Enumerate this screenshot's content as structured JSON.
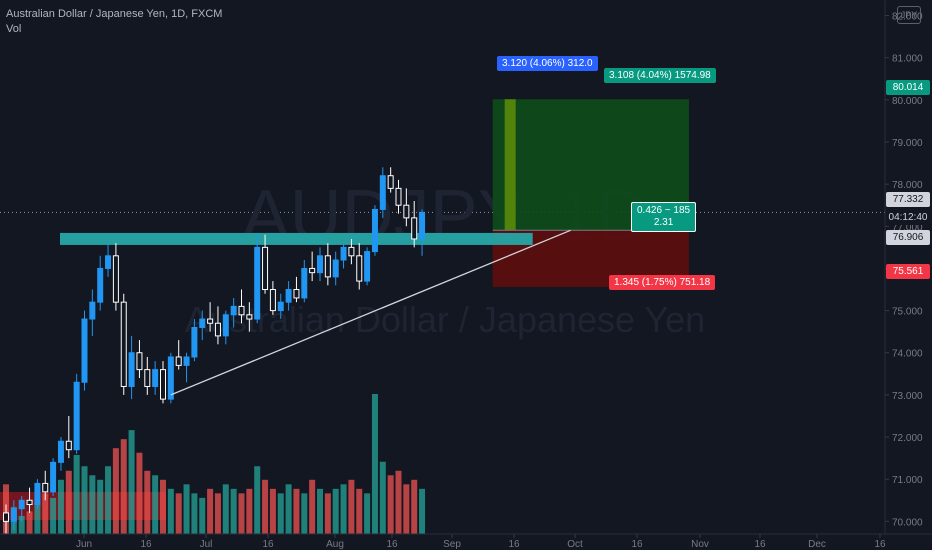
{
  "header": {
    "symbol_line": "Australian Dollar / Japanese Yen, 1D, FXCM",
    "volume_label": "Vol",
    "currency_badge": "JPY"
  },
  "watermark": {
    "line1": "AUDJPY, 1D",
    "line2": "Australian Dollar / Japanese Yen"
  },
  "position_tool": {
    "target_label": "3.108 (4.04%) 1574.98",
    "stop_label": "1.345 (1.75%) 751.18",
    "center_label_1": "0.426 ~ 185",
    "center_label_2": "2.31",
    "measure_label": "3.120 (4.06%) 312.0"
  },
  "price_tags": {
    "target": "80.014",
    "last": "77.332",
    "countdown": "04:12:40",
    "entry": "76.906",
    "stop": "75.561"
  },
  "colors": {
    "background": "#131722",
    "up": "#2196f3",
    "down": "#ffffff",
    "vol_up": "#26a69a",
    "vol_down": "#ef5350",
    "resistance": "#26a6a8",
    "profit_zone": "#0d4d1a",
    "loss_zone": "#5e0d0d",
    "tag_green": "#089981",
    "tag_red": "#f23645",
    "tag_blue": "#2962ff"
  },
  "chart_data": {
    "type": "candlestick",
    "y_ticks": [
      "82.000",
      "81.000",
      "80.000",
      "79.000",
      "78.000",
      "77.000",
      "76.000",
      "75.000",
      "74.000",
      "73.000",
      "72.000",
      "71.000",
      "70.000"
    ],
    "x_ticks": [
      "Jun",
      "16",
      "Jul",
      "16",
      "Aug",
      "16",
      "Sep",
      "16",
      "Oct",
      "16",
      "Nov",
      "16",
      "Dec",
      "16"
    ],
    "ylim": [
      69.7,
      82.25
    ],
    "resistance_level": 76.7,
    "support_line": [
      [
        21,
        73.0
      ],
      [
        56,
        77.0
      ]
    ],
    "position": {
      "entry": 76.906,
      "target": 80.014,
      "stop": 75.561,
      "start_index": 62,
      "end_index": 87
    },
    "candles": [
      [
        70.2,
        70.4,
        69.7,
        70.0
      ],
      [
        70.0,
        70.5,
        69.8,
        70.3
      ],
      [
        70.3,
        70.6,
        70.0,
        70.5
      ],
      [
        70.5,
        70.8,
        70.2,
        70.4
      ],
      [
        70.4,
        71.0,
        70.3,
        70.9
      ],
      [
        70.9,
        71.2,
        70.5,
        70.7
      ],
      [
        70.7,
        71.5,
        70.6,
        71.4
      ],
      [
        71.4,
        72.0,
        71.2,
        71.9
      ],
      [
        71.9,
        72.5,
        71.5,
        71.7
      ],
      [
        71.7,
        73.5,
        71.6,
        73.3
      ],
      [
        73.3,
        75.0,
        73.1,
        74.8
      ],
      [
        74.8,
        75.5,
        74.4,
        75.2
      ],
      [
        75.2,
        76.3,
        75.0,
        76.0
      ],
      [
        76.0,
        76.6,
        75.8,
        76.3
      ],
      [
        76.3,
        76.6,
        75.0,
        75.2
      ],
      [
        75.2,
        75.4,
        73.0,
        73.2
      ],
      [
        73.2,
        74.4,
        72.9,
        74.0
      ],
      [
        74.0,
        74.3,
        73.4,
        73.6
      ],
      [
        73.6,
        73.9,
        73.0,
        73.2
      ],
      [
        73.2,
        73.8,
        73.0,
        73.6
      ],
      [
        73.6,
        73.8,
        72.8,
        72.9
      ],
      [
        72.9,
        74.0,
        72.8,
        73.9
      ],
      [
        73.9,
        74.3,
        73.6,
        73.7
      ],
      [
        73.7,
        74.0,
        73.3,
        73.9
      ],
      [
        73.9,
        74.8,
        73.8,
        74.6
      ],
      [
        74.6,
        75.0,
        74.3,
        74.8
      ],
      [
        74.8,
        75.2,
        74.5,
        74.7
      ],
      [
        74.7,
        75.1,
        74.2,
        74.4
      ],
      [
        74.4,
        75.0,
        74.2,
        74.9
      ],
      [
        74.9,
        75.3,
        74.6,
        75.1
      ],
      [
        75.1,
        75.5,
        74.7,
        74.9
      ],
      [
        74.9,
        75.2,
        74.5,
        74.8
      ],
      [
        74.8,
        76.8,
        74.7,
        76.5
      ],
      [
        76.5,
        76.8,
        75.4,
        75.5
      ],
      [
        75.5,
        75.7,
        74.9,
        75.0
      ],
      [
        75.0,
        75.4,
        74.8,
        75.2
      ],
      [
        75.2,
        75.7,
        75.0,
        75.5
      ],
      [
        75.5,
        75.8,
        75.2,
        75.3
      ],
      [
        75.3,
        76.2,
        75.2,
        76.0
      ],
      [
        76.0,
        76.4,
        75.7,
        75.9
      ],
      [
        75.9,
        76.5,
        75.7,
        76.3
      ],
      [
        76.3,
        76.6,
        75.6,
        75.8
      ],
      [
        75.8,
        76.4,
        75.6,
        76.2
      ],
      [
        76.2,
        76.6,
        76.0,
        76.5
      ],
      [
        76.5,
        76.7,
        76.1,
        76.3
      ],
      [
        76.3,
        76.6,
        75.5,
        75.7
      ],
      [
        75.7,
        76.5,
        75.6,
        76.4
      ],
      [
        76.4,
        77.5,
        76.3,
        77.4
      ],
      [
        77.4,
        78.4,
        77.2,
        78.2
      ],
      [
        78.2,
        78.4,
        77.8,
        77.9
      ],
      [
        77.9,
        78.1,
        77.3,
        77.5
      ],
      [
        77.5,
        77.9,
        77.0,
        77.2
      ],
      [
        77.2,
        77.6,
        76.5,
        76.7
      ],
      [
        76.7,
        77.4,
        76.3,
        77.33
      ]
    ],
    "volume": [
      22,
      12,
      8,
      10,
      14,
      18,
      16,
      24,
      28,
      35,
      30,
      26,
      24,
      30,
      38,
      42,
      46,
      36,
      28,
      26,
      24,
      20,
      18,
      22,
      18,
      16,
      20,
      18,
      22,
      20,
      18,
      20,
      30,
      24,
      20,
      18,
      22,
      20,
      18,
      24,
      20,
      18,
      20,
      22,
      24,
      20,
      18,
      62,
      32,
      26,
      28,
      22,
      24,
      20
    ]
  }
}
